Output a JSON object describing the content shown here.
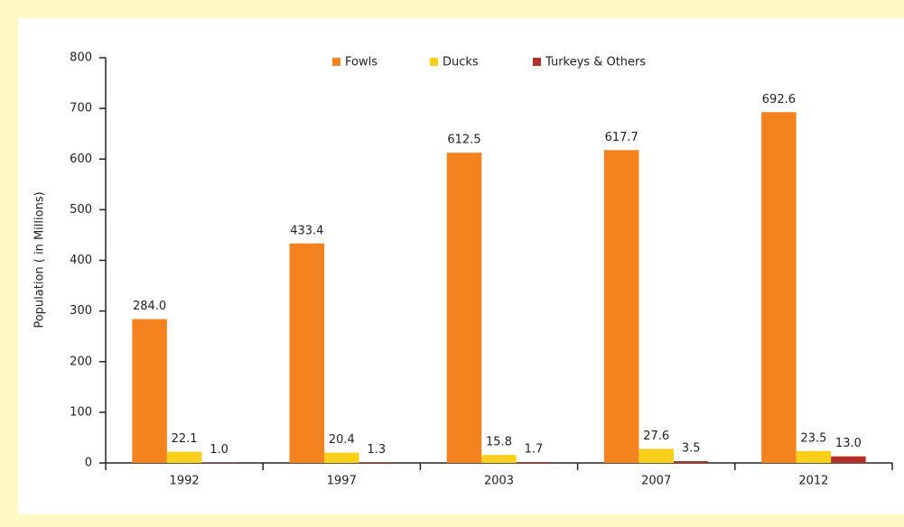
{
  "chart_data": {
    "type": "bar",
    "ylabel": "Population ( in Millions)",
    "categories": [
      "1992",
      "1997",
      "2003",
      "2007",
      "2012"
    ],
    "series": [
      {
        "name": "Fowls",
        "color": "#f4821f",
        "values": [
          284.0,
          433.4,
          612.5,
          617.7,
          692.6
        ],
        "value_labels": [
          "284.0",
          "433.4",
          "612.5",
          "617.7",
          "692.6"
        ]
      },
      {
        "name": "Ducks",
        "color": "#f9cf1a",
        "values": [
          22.1,
          20.4,
          15.8,
          27.6,
          23.5
        ],
        "value_labels": [
          "22.1",
          "20.4",
          "15.8",
          "27.6",
          "23.5"
        ]
      },
      {
        "name": "Turkeys & Others",
        "color": "#b3302a",
        "values": [
          1.0,
          1.3,
          1.7,
          3.5,
          13.0
        ],
        "value_labels": [
          "1.0",
          "1.3",
          "1.7",
          "3.5",
          "13.0"
        ]
      }
    ],
    "ylim": [
      0,
      800
    ],
    "yticks": [
      0,
      100,
      200,
      300,
      400,
      500,
      600,
      700,
      800
    ],
    "legend": "top",
    "grid": false
  }
}
